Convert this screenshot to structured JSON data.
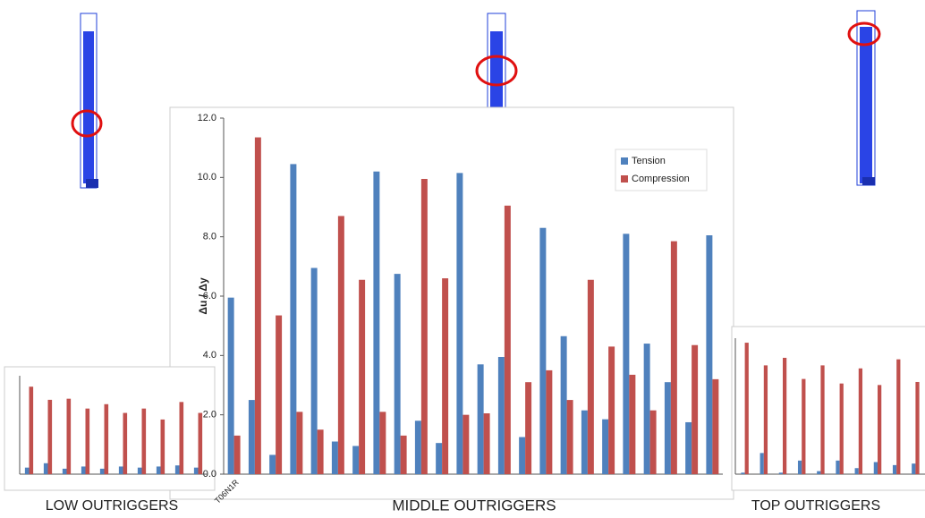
{
  "chart_data": [
    {
      "type": "bar",
      "caption": "MIDDLE OUTRIGGERS",
      "y_label": "Δu / Δy",
      "categories": [
        "T06N1R",
        null,
        null,
        null,
        null,
        null,
        null,
        null,
        null,
        null,
        null,
        null,
        null,
        null,
        null,
        null,
        null,
        null,
        null,
        null,
        null,
        null,
        null,
        null
      ],
      "series": [
        {
          "name": "Tension",
          "color": "#4f81bd",
          "values": [
            5.95,
            2.5,
            0.65,
            10.45,
            6.95,
            1.1,
            0.95,
            10.2,
            6.75,
            1.8,
            1.05,
            10.15,
            3.7,
            3.95,
            1.25,
            8.3,
            4.65,
            2.15,
            1.85,
            8.1,
            4.4,
            3.1,
            1.75,
            8.05
          ]
        },
        {
          "name": "Compression",
          "color": "#c0504d",
          "values": [
            1.3,
            11.35,
            5.35,
            2.1,
            1.5,
            8.7,
            6.55,
            2.1,
            1.3,
            9.95,
            6.6,
            2.0,
            2.05,
            9.05,
            3.1,
            3.5,
            2.5,
            6.55,
            4.3,
            3.35,
            2.15,
            7.85,
            4.35,
            3.2
          ]
        }
      ],
      "ylim": [
        0,
        12
      ],
      "yticks": [
        {
          "value": 0,
          "label": "0.0"
        },
        {
          "value": 2,
          "label": "2.0"
        },
        {
          "value": 4,
          "label": "4.0"
        },
        {
          "value": 6,
          "label": "6.0"
        },
        {
          "value": 8,
          "label": "8.0"
        },
        {
          "value": 10,
          "label": "10.0"
        },
        {
          "value": 12,
          "label": "12.0"
        }
      ]
    },
    {
      "type": "bar",
      "caption": "LOW OUTRIGGERS",
      "series": [
        {
          "color": "#4f81bd",
          "values": [
            0.3,
            0.5,
            0.25,
            0.35,
            0.25,
            0.35,
            0.3,
            0.35,
            0.4,
            0.3
          ]
        },
        {
          "color": "#c0504d",
          "values": [
            4.0,
            3.4,
            3.45,
            3.0,
            3.2,
            2.8,
            3.0,
            2.5,
            3.3,
            2.8
          ]
        }
      ],
      "ylim": [
        0,
        4.5
      ]
    },
    {
      "type": "bar",
      "caption": "TOP OUTRIGGERS",
      "series": [
        {
          "color": "#4f81bd",
          "values": [
            0.05,
            0.7,
            0.05,
            0.45,
            0.1,
            0.45,
            0.2,
            0.4,
            0.3,
            0.35
          ]
        },
        {
          "color": "#c0504d",
          "values": [
            4.35,
            3.6,
            3.85,
            3.15,
            3.6,
            3.0,
            3.5,
            2.95,
            3.8,
            3.05
          ]
        }
      ],
      "ylim": [
        0,
        4.5
      ]
    }
  ]
}
